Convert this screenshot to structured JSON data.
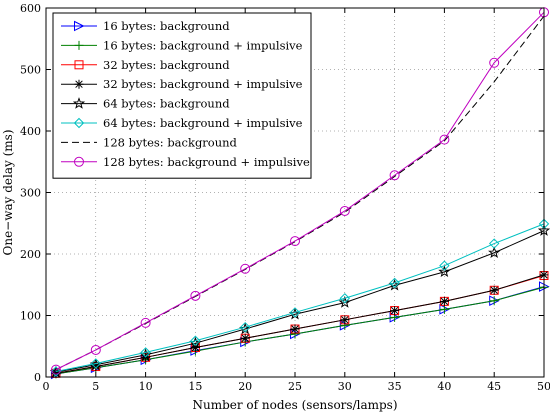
{
  "chart_data": {
    "type": "line",
    "xlabel": "Number of nodes (sensors/lamps)",
    "ylabel": "One−way delay (ms)",
    "xlim": [
      0,
      50
    ],
    "ylim": [
      0,
      600
    ],
    "xticks": [
      0,
      5,
      10,
      15,
      20,
      25,
      30,
      35,
      40,
      45,
      50
    ],
    "yticks": [
      0,
      100,
      200,
      300,
      400,
      500,
      600
    ],
    "grid": true,
    "legend_position": "top-left",
    "x": [
      1,
      5,
      10,
      15,
      20,
      25,
      30,
      35,
      40,
      45,
      50
    ],
    "series": [
      {
        "name": "16 bytes: background",
        "color": "#0000ff",
        "marker": "triangle-right",
        "dash": "solid",
        "values": [
          5,
          15,
          28,
          43,
          57,
          70,
          84,
          97,
          110,
          124,
          147
        ]
      },
      {
        "name": "16 bytes: background + impulsive",
        "color": "#008000",
        "marker": "plus",
        "dash": "solid",
        "values": [
          5,
          15,
          28,
          42,
          57,
          70,
          84,
          97,
          110,
          124,
          146
        ]
      },
      {
        "name": "32 bytes: background",
        "color": "#ff0000",
        "marker": "square",
        "dash": "solid",
        "values": [
          6,
          17,
          32,
          48,
          63,
          78,
          93,
          108,
          123,
          141,
          165
        ]
      },
      {
        "name": "32 bytes: background + impulsive",
        "color": "#000000",
        "marker": "asterisk",
        "dash": "solid",
        "values": [
          6,
          17,
          32,
          48,
          63,
          78,
          93,
          108,
          123,
          141,
          166
        ]
      },
      {
        "name": "64 bytes: background",
        "color": "#000000",
        "marker": "star",
        "dash": "solid",
        "values": [
          8,
          20,
          36,
          55,
          78,
          102,
          121,
          149,
          171,
          202,
          238
        ]
      },
      {
        "name": "64 bytes: background + impulsive",
        "color": "#00c0c0",
        "marker": "diamond",
        "dash": "solid",
        "values": [
          9,
          22,
          40,
          59,
          81,
          105,
          128,
          153,
          181,
          217,
          249
        ]
      },
      {
        "name": "128 bytes: background",
        "color": "#000000",
        "marker": "none",
        "dash": "dashed",
        "values": [
          12,
          44,
          87,
          131,
          175,
          220,
          268,
          326,
          384,
          480,
          587
        ]
      },
      {
        "name": "128 bytes: background + impulsive",
        "color": "#c000c0",
        "marker": "circle",
        "dash": "solid",
        "values": [
          12,
          44,
          88,
          132,
          176,
          221,
          270,
          328,
          386,
          511,
          593
        ]
      }
    ]
  }
}
